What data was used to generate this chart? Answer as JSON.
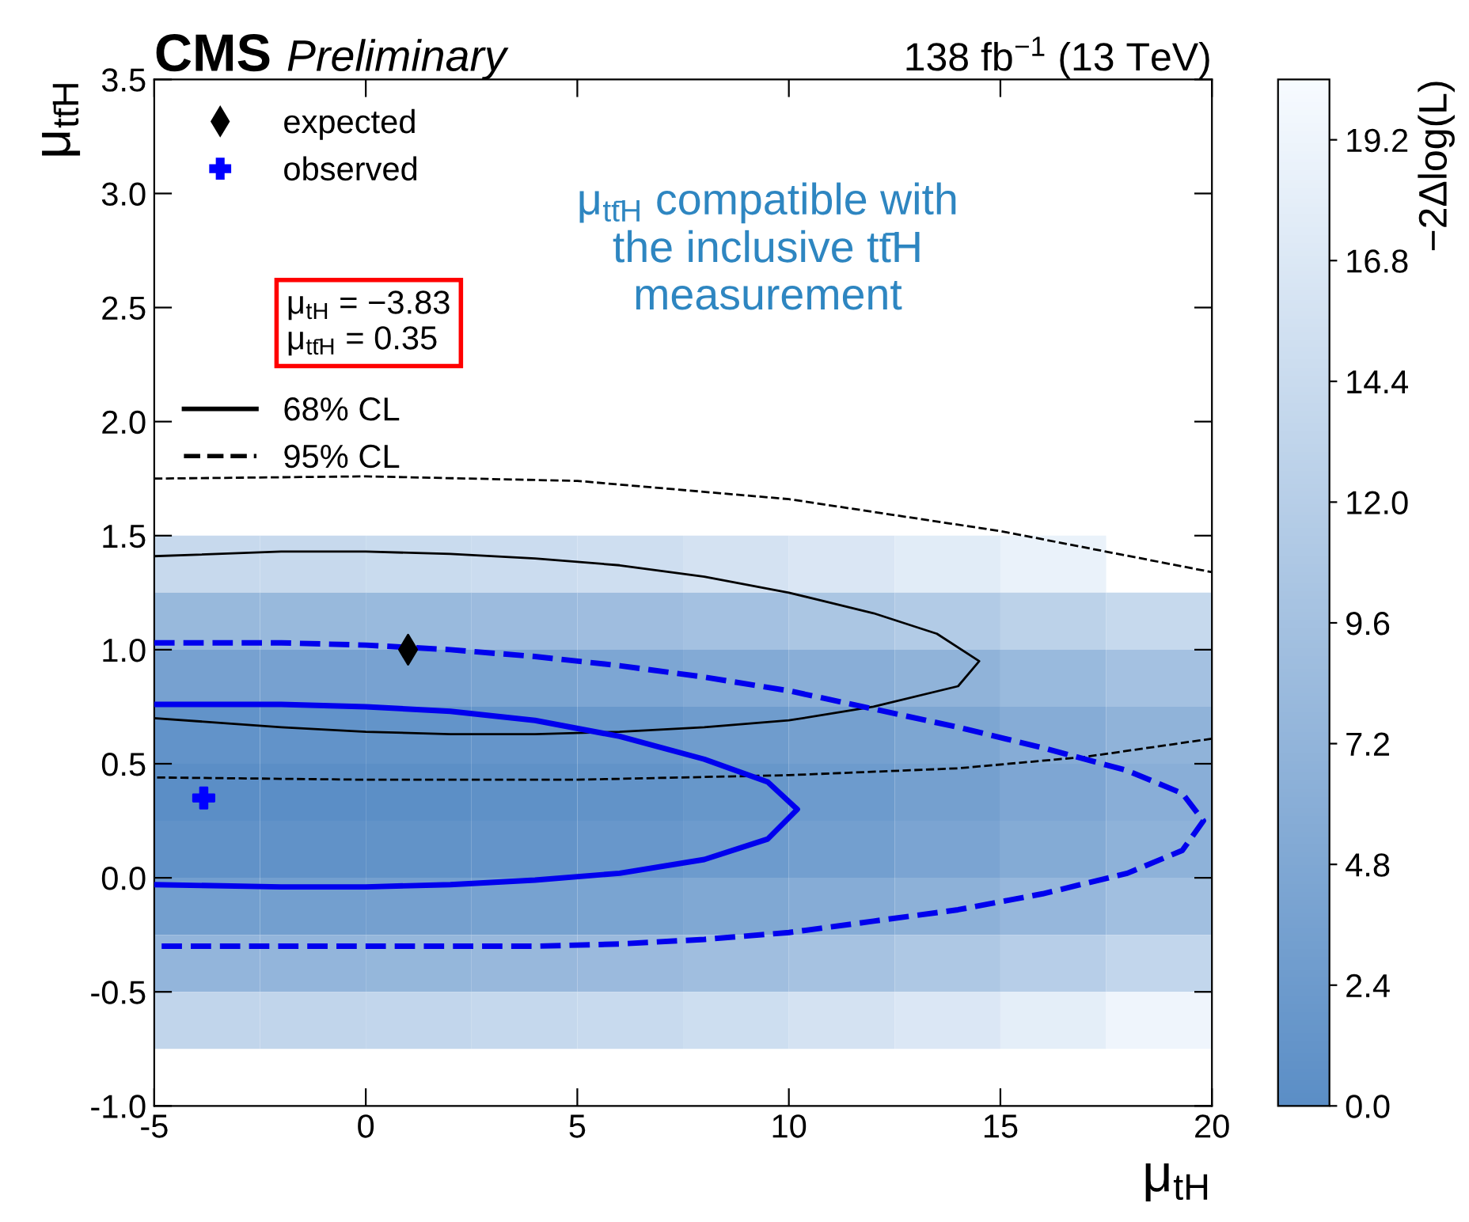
{
  "chart_data": {
    "type": "heatmap",
    "title": "CMS",
    "subtitle": "Preliminary",
    "xlabel": "μ$_{tH}$",
    "ylabel": "μ$_{tt̄H}$",
    "clabel": "−2Δlog(L)",
    "annotations": [
      "138 fb$^{−1}$ (13 TeV)",
      "μ$_{tt̄H}$ compatible with\nthe inclusive tt̄H\nmeasurement",
      "μ$_{tH}$ = −3.83",
      "μ$_{tt̄H}$ = 0.35"
    ],
    "x": [
      -3.75,
      -1.25,
      1.25,
      3.75,
      6.25,
      8.75,
      11.25,
      13.75,
      16.25,
      18.75
    ],
    "y": [
      1.375,
      1.125,
      0.875,
      0.625,
      0.375,
      0.125,
      -0.125,
      -0.375,
      -0.625
    ],
    "cells": [
      [
        14.1,
        14.1,
        14.3,
        14.6,
        15.0,
        15.7,
        16.5,
        17.5,
        18.7,
        null
      ],
      [
        8.0,
        8.0,
        8.2,
        8.5,
        8.9,
        9.6,
        10.4,
        11.4,
        12.6,
        14.0
      ],
      [
        3.6,
        3.6,
        3.8,
        4.1,
        4.5,
        5.2,
        6.0,
        7.0,
        8.2,
        9.6
      ],
      [
        1.0,
        1.0,
        1.1,
        1.4,
        1.9,
        2.6,
        3.4,
        4.4,
        5.6,
        6.9
      ],
      [
        0.0,
        0.0,
        0.2,
        0.5,
        0.9,
        1.6,
        2.4,
        3.4,
        4.6,
        6.0
      ],
      [
        0.8,
        0.8,
        0.9,
        1.2,
        1.7,
        2.4,
        3.2,
        4.2,
        5.4,
        6.7
      ],
      [
        3.2,
        3.2,
        3.4,
        3.7,
        4.1,
        4.8,
        5.6,
        6.6,
        7.8,
        9.2
      ],
      [
        7.4,
        7.4,
        7.6,
        7.9,
        8.3,
        9.0,
        9.8,
        10.8,
        12.0,
        13.4
      ],
      [
        13.3,
        13.3,
        13.5,
        13.8,
        14.2,
        14.9,
        15.7,
        16.7,
        17.9,
        19.3
      ]
    ],
    "colors": [
      "#5b8ec6",
      "#f7fbff"
    ],
    "clim": [
      0,
      20.4
    ],
    "cticks": [
      {
        "value": 0,
        "label": "0.0"
      },
      {
        "value": 2.4,
        "label": "2.4"
      },
      {
        "value": 4.8,
        "label": "4.8"
      },
      {
        "value": 7.2,
        "label": "7.2"
      },
      {
        "value": 9.6,
        "label": "9.6"
      },
      {
        "value": 12,
        "label": "12.0"
      },
      {
        "value": 14.4,
        "label": "14.4"
      },
      {
        "value": 16.8,
        "label": "16.8"
      },
      {
        "value": 19.2,
        "label": "19.2"
      }
    ],
    "xlim": [
      -5,
      20
    ],
    "xticks": [
      -5,
      0,
      5,
      10,
      15,
      20
    ],
    "ylim": [
      -1,
      3.5
    ],
    "yticks": [
      {
        "value": -1,
        "label": "-1.0"
      },
      {
        "value": -0.5,
        "label": "-0.5"
      },
      {
        "value": 0,
        "label": "0.0"
      },
      {
        "value": 0.5,
        "label": "0.5"
      },
      {
        "value": 1,
        "label": "1.0"
      },
      {
        "value": 1.5,
        "label": "1.5"
      },
      {
        "value": 2,
        "label": "2.0"
      },
      {
        "value": 2.5,
        "label": "2.5"
      },
      {
        "value": 3,
        "label": "3.0"
      },
      {
        "value": 3.5,
        "label": "3.5"
      }
    ],
    "grid": false,
    "legend": "top left",
    "series": [
      {
        "type": "scatter",
        "name": "expected",
        "color": "#000000",
        "marker": "diamond",
        "x": [
          1.0
        ],
        "values": [
          1.0
        ]
      },
      {
        "type": "scatter",
        "name": "observed",
        "color": "#0000ff",
        "marker": "cross",
        "x": [
          -3.83
        ],
        "values": [
          0.35
        ]
      },
      {
        "type": "line",
        "name": "68% CL",
        "color": "#000000",
        "line_style": "solid",
        "x": [
          -5,
          -2,
          0,
          2,
          4,
          6,
          8,
          10,
          12,
          13.5,
          14.5,
          14,
          12,
          10,
          8,
          6,
          4,
          2,
          0,
          -2,
          -5
        ],
        "values": [
          1.41,
          1.43,
          1.43,
          1.42,
          1.4,
          1.37,
          1.32,
          1.25,
          1.16,
          1.07,
          0.95,
          0.84,
          0.75,
          0.69,
          0.66,
          0.64,
          0.63,
          0.63,
          0.64,
          0.66,
          0.7
        ]
      },
      {
        "type": "line",
        "name": "95% CL",
        "color": "#000000",
        "line_style": "dashed",
        "x": [
          -5,
          0,
          5,
          10,
          15,
          20,
          null,
          20,
          17,
          14,
          10,
          5,
          0,
          -5
        ],
        "values": [
          1.75,
          1.76,
          1.74,
          1.66,
          1.52,
          1.34,
          null,
          0.61,
          0.53,
          0.48,
          0.45,
          0.43,
          0.43,
          0.44
        ]
      },
      {
        "type": "line",
        "color": "#0000ee",
        "line_style": "solid",
        "x": [
          -5,
          -2,
          0,
          2,
          4,
          6,
          8,
          9.5,
          10.2,
          9.5,
          8,
          6,
          4,
          2,
          0,
          -2,
          -5
        ],
        "values": [
          0.76,
          0.76,
          0.75,
          0.73,
          0.69,
          0.62,
          0.52,
          0.42,
          0.3,
          0.17,
          0.08,
          0.02,
          -0.01,
          -0.03,
          -0.04,
          -0.04,
          -0.03
        ]
      },
      {
        "type": "line",
        "color": "#0000ee",
        "line_style": "dashed",
        "x": [
          -5,
          -2,
          0,
          2,
          4,
          6,
          8,
          10,
          12,
          14,
          16,
          18,
          19.3,
          19.8,
          19.3,
          18,
          16,
          14,
          12,
          10,
          8,
          6,
          4,
          2,
          0,
          -2,
          -5
        ],
        "values": [
          1.03,
          1.03,
          1.02,
          1.0,
          0.97,
          0.93,
          0.88,
          0.82,
          0.74,
          0.66,
          0.57,
          0.47,
          0.37,
          0.25,
          0.12,
          0.02,
          -0.07,
          -0.14,
          -0.19,
          -0.24,
          -0.27,
          -0.29,
          -0.3,
          -0.3,
          -0.3,
          -0.3,
          -0.3
        ]
      }
    ]
  }
}
